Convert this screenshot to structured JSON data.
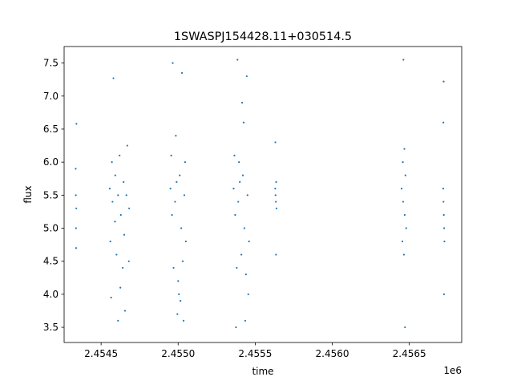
{
  "chart_data": {
    "type": "scatter",
    "title": "1SWASPJ154428.11+030514.5",
    "xlabel": "time",
    "ylabel": "flux",
    "x_offset_label": "1e6",
    "xlim": [
      2454260,
      2456840
    ],
    "ylim": [
      3.27,
      7.75
    ],
    "x_ticks": [
      2454500,
      2455000,
      2455500,
      2456000,
      2456500
    ],
    "x_tick_labels": [
      "2.4545",
      "2.4550",
      "2.4555",
      "2.4560",
      "2.4565"
    ],
    "y_ticks": [
      3.5,
      4.0,
      4.5,
      5.0,
      5.5,
      6.0,
      6.5,
      7.0,
      7.5
    ],
    "y_tick_labels": [
      "3.5",
      "4.0",
      "4.5",
      "5.0",
      "5.5",
      "6.0",
      "6.5",
      "7.0",
      "7.5"
    ],
    "point_color": "#1f77b4",
    "grid": false,
    "legend": false,
    "series": [
      {
        "x": [
          2454335,
          2454336,
          2454337,
          2454338,
          2454339,
          2454340,
          2454556,
          2454574,
          2454592,
          2454610,
          2454628,
          2454646,
          2454664,
          2454682,
          2454560,
          2454600,
          2454640,
          2454680,
          2454570,
          2454620,
          2454590,
          2454650,
          2454580,
          2454670,
          2454565,
          2454625,
          2454610,
          2454655,
          2454950,
          2454980,
          2455010,
          2455040,
          2454960,
          2454990,
          2455020,
          2455050,
          2454970,
          2455000,
          2455030,
          2454955,
          2455045,
          2454985,
          2455015,
          2455035,
          2454965,
          2455025,
          2454995,
          2455005,
          2455360,
          2455390,
          2455420,
          2455450,
          2455370,
          2455400,
          2455430,
          2455460,
          2455380,
          2455410,
          2455440,
          2455365,
          2455395,
          2455425,
          2455455,
          2455375,
          2455415,
          2455445,
          2455385,
          2455435,
          2455630,
          2455632,
          2455634,
          2455636,
          2455638,
          2455631,
          2455635,
          2456450,
          2456460,
          2456470,
          2456480,
          2456455,
          2456465,
          2456475,
          2456458,
          2456468,
          2456462,
          2456472,
          2456720,
          2456722,
          2456724,
          2456726,
          2456728,
          2456721,
          2456725,
          2456723
        ],
        "y": [
          5.9,
          5.5,
          5.0,
          4.7,
          5.3,
          6.58,
          5.6,
          5.4,
          5.8,
          5.5,
          5.2,
          5.7,
          5.5,
          5.3,
          4.8,
          4.6,
          4.4,
          4.5,
          6.0,
          6.1,
          5.1,
          4.9,
          7.27,
          6.25,
          3.95,
          4.1,
          3.6,
          3.75,
          5.6,
          5.4,
          5.8,
          5.5,
          5.2,
          5.7,
          5.0,
          4.8,
          4.4,
          4.2,
          4.5,
          6.1,
          6.0,
          6.4,
          3.9,
          3.6,
          7.5,
          7.35,
          3.7,
          4.0,
          5.6,
          5.4,
          5.8,
          5.5,
          5.2,
          5.7,
          5.0,
          4.8,
          4.4,
          4.6,
          4.3,
          6.1,
          6.0,
          6.6,
          4.0,
          3.5,
          6.9,
          7.3,
          7.55,
          3.6,
          5.6,
          5.5,
          5.4,
          5.7,
          5.3,
          6.3,
          4.6,
          5.6,
          5.4,
          5.2,
          5.0,
          4.8,
          4.6,
          5.8,
          6.0,
          6.2,
          7.55,
          3.5,
          5.6,
          5.4,
          5.2,
          5.0,
          4.8,
          6.6,
          4.0,
          7.22
        ]
      }
    ]
  }
}
